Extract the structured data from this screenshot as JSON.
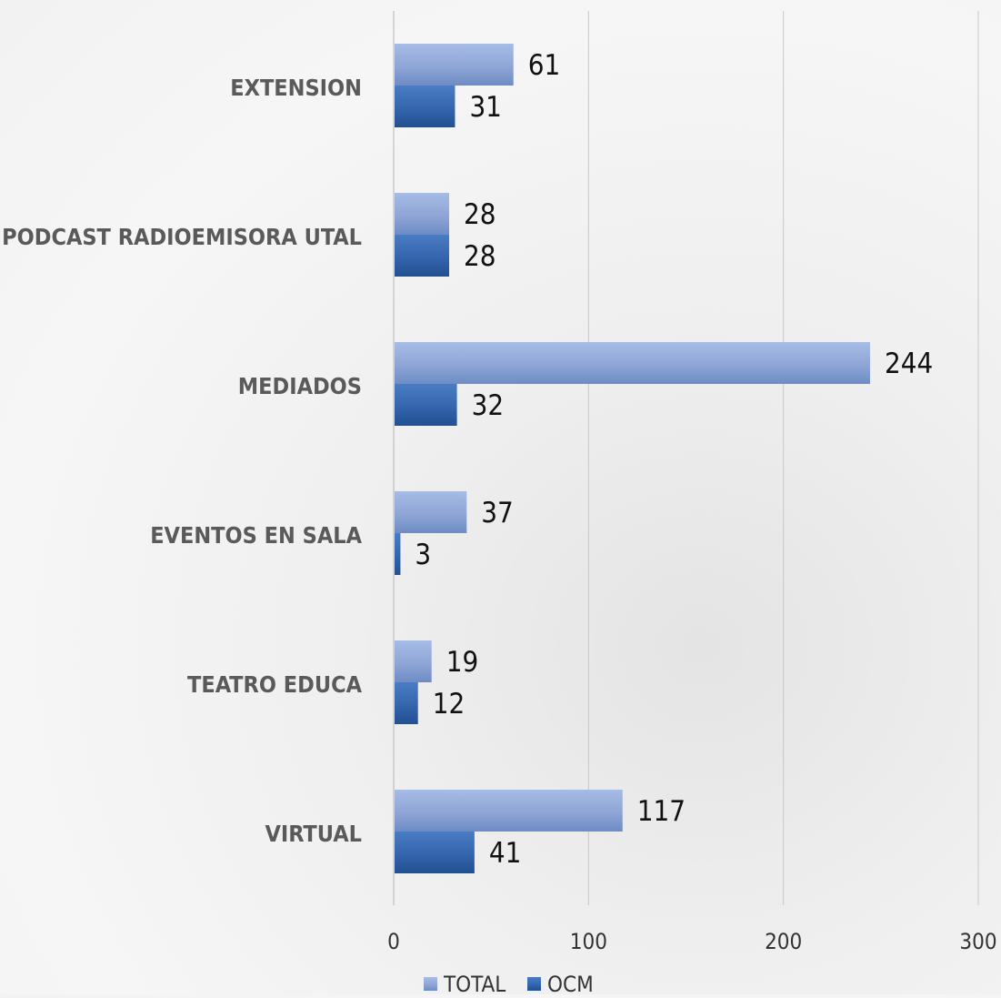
{
  "chart_data": {
    "type": "bar",
    "orientation": "horizontal",
    "categories": [
      "EXTENSION",
      "PODCAST RADIOEMISORA UTAL",
      "MEDIADOS",
      "EVENTOS EN SALA",
      "TEATRO EDUCA",
      "VIRTUAL"
    ],
    "series": [
      {
        "name": "TOTAL",
        "values": [
          61,
          28,
          244,
          37,
          19,
          117
        ]
      },
      {
        "name": "OCM",
        "values": [
          31,
          28,
          32,
          3,
          12,
          41
        ]
      }
    ],
    "xlim": [
      0,
      300
    ],
    "xticks": [
      0,
      100,
      200,
      300
    ],
    "grid": true,
    "legend": "bottom",
    "colors": {
      "TOTAL": "#8ea6d6",
      "OCM": "#3465ad",
      "grid": "#c8c8c8",
      "label": "#5a5a5a"
    }
  }
}
